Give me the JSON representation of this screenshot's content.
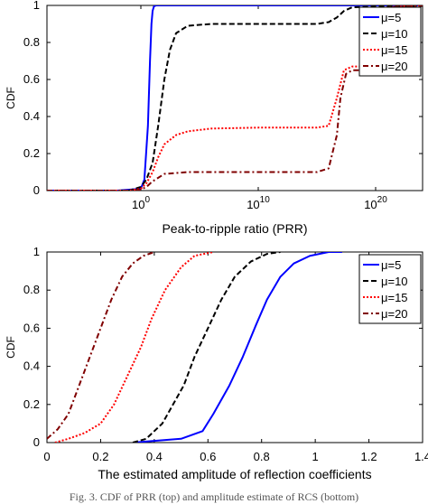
{
  "caption": "Fig. 3.  CDF of PRR (top) and amplitude estimate of RCS (bottom)",
  "chart_data": [
    {
      "type": "line",
      "ylabel": "CDF",
      "xlabel": "Peak-to-ripple ratio (PRR)",
      "xscale": "log",
      "xlim": [
        1e-08,
        1e+24
      ],
      "ylim": [
        0,
        1
      ],
      "xticks": [
        1,
        10000000000.0,
        1e+20
      ],
      "xtick_labels": [
        {
          "base": "10",
          "exp": "0"
        },
        {
          "base": "10",
          "exp": "10"
        },
        {
          "base": "10",
          "exp": "20"
        }
      ],
      "yticks": [
        0,
        0.2,
        0.4,
        0.6,
        0.8,
        1
      ],
      "ytick_labels": [
        "0",
        "0.2",
        "0.4",
        "0.6",
        "0.8",
        "1"
      ],
      "legend_position": "top-right",
      "series": [
        {
          "name": "μ=5",
          "color": "#0000ff",
          "dash": "solid",
          "points": [
            [
              1e-08,
              0
            ],
            [
              0.01,
              0
            ],
            [
              1,
              0.01
            ],
            [
              2,
              0.06
            ],
            [
              4,
              0.35
            ],
            [
              6,
              0.7
            ],
            [
              8,
              0.9
            ],
            [
              10,
              0.97
            ],
            [
              13,
              0.995
            ],
            [
              20,
              1
            ],
            [
              1e+24,
              1
            ]
          ]
        },
        {
          "name": "μ=10",
          "color": "#000000",
          "dash": "dash",
          "points": [
            [
              1e-08,
              0
            ],
            [
              0.1,
              0
            ],
            [
              1,
              0.02
            ],
            [
              3,
              0.06
            ],
            [
              10,
              0.15
            ],
            [
              30,
              0.35
            ],
            [
              100,
              0.6
            ],
            [
              300,
              0.76
            ],
            [
              1000,
              0.85
            ],
            [
              10000.0,
              0.89
            ],
            [
              1000000.0,
              0.9
            ],
            [
              10000000000.0,
              0.9
            ],
            [
              1000000000000000.0,
              0.9
            ],
            [
              1e+16,
              0.91
            ],
            [
              5e+16,
              0.935
            ],
            [
              2e+17,
              0.97
            ],
            [
              1e+18,
              0.99
            ],
            [
              1e+20,
              0.995
            ],
            [
              1e+24,
              0.997
            ]
          ]
        },
        {
          "name": "μ=15",
          "color": "#ff0000",
          "dash": "dot",
          "points": [
            [
              1e-08,
              0
            ],
            [
              0.1,
              0
            ],
            [
              1,
              0.01
            ],
            [
              3,
              0.04
            ],
            [
              10,
              0.1
            ],
            [
              30,
              0.18
            ],
            [
              100,
              0.25
            ],
            [
              1000,
              0.3
            ],
            [
              10000.0,
              0.32
            ],
            [
              1000000.0,
              0.335
            ],
            [
              10000000000.0,
              0.34
            ],
            [
              1000000000000000.0,
              0.34
            ],
            [
              1e+16,
              0.35
            ],
            [
              5e+16,
              0.5
            ],
            [
              2e+17,
              0.65
            ],
            [
              1e+18,
              0.67
            ],
            [
              1e+19,
              0.67
            ],
            [
              2e+19,
              0.75
            ],
            [
              5e+19,
              0.9
            ],
            [
              1e+20,
              0.97
            ],
            [
              1e+21,
              0.99
            ],
            [
              1e+24,
              1
            ]
          ]
        },
        {
          "name": "μ=20",
          "color": "#800000",
          "dash": "dashdot",
          "points": [
            [
              1e-08,
              0
            ],
            [
              0.1,
              0
            ],
            [
              1,
              0.005
            ],
            [
              3,
              0.02
            ],
            [
              10,
              0.05
            ],
            [
              100,
              0.09
            ],
            [
              10000.0,
              0.1
            ],
            [
              10000000000.0,
              0.1
            ],
            [
              1000000000000000.0,
              0.1
            ],
            [
              1e+16,
              0.12
            ],
            [
              5e+16,
              0.3
            ],
            [
              1e+17,
              0.5
            ],
            [
              3e+17,
              0.63
            ],
            [
              1e+18,
              0.65
            ],
            [
              1e+19,
              0.65
            ],
            [
              2e+19,
              0.7
            ],
            [
              5e+19,
              0.82
            ],
            [
              1e+20,
              0.96
            ],
            [
              1e+21,
              0.99
            ],
            [
              1e+24,
              1
            ]
          ]
        }
      ]
    },
    {
      "type": "line",
      "ylabel": "CDF",
      "xlabel": "The estimated amplitude of reflection coefficients",
      "xscale": "linear",
      "xlim": [
        0,
        1.4
      ],
      "ylim": [
        0,
        1
      ],
      "xticks": [
        0,
        0.2,
        0.4,
        0.6,
        0.8,
        1,
        1.2,
        1.4
      ],
      "xtick_labels": [
        "0",
        "0.2",
        "0.4",
        "0.6",
        "0.8",
        "1",
        "1.2",
        "1.4"
      ],
      "yticks": [
        0,
        0.2,
        0.4,
        0.6,
        0.8,
        1
      ],
      "ytick_labels": [
        "0",
        "0.2",
        "0.4",
        "0.6",
        "0.8",
        "1"
      ],
      "legend_position": "top-right",
      "series": [
        {
          "name": "μ=5",
          "color": "#0000ff",
          "dash": "solid",
          "points": [
            [
              0.32,
              0
            ],
            [
              0.5,
              0.02
            ],
            [
              0.58,
              0.06
            ],
            [
              0.62,
              0.15
            ],
            [
              0.68,
              0.3
            ],
            [
              0.73,
              0.45
            ],
            [
              0.78,
              0.62
            ],
            [
              0.82,
              0.75
            ],
            [
              0.87,
              0.87
            ],
            [
              0.92,
              0.94
            ],
            [
              0.98,
              0.98
            ],
            [
              1.05,
              1
            ],
            [
              1.1,
              1
            ]
          ]
        },
        {
          "name": "μ=10",
          "color": "#000000",
          "dash": "dash",
          "points": [
            [
              0.32,
              0
            ],
            [
              0.37,
              0.02
            ],
            [
              0.43,
              0.1
            ],
            [
              0.47,
              0.2
            ],
            [
              0.51,
              0.3
            ],
            [
              0.55,
              0.45
            ],
            [
              0.6,
              0.6
            ],
            [
              0.65,
              0.75
            ],
            [
              0.7,
              0.87
            ],
            [
              0.76,
              0.95
            ],
            [
              0.82,
              0.99
            ],
            [
              0.87,
              1
            ]
          ]
        },
        {
          "name": "μ=15",
          "color": "#ff0000",
          "dash": "dot",
          "points": [
            [
              0.03,
              0
            ],
            [
              0.08,
              0.02
            ],
            [
              0.14,
              0.05
            ],
            [
              0.2,
              0.1
            ],
            [
              0.25,
              0.2
            ],
            [
              0.3,
              0.35
            ],
            [
              0.35,
              0.5
            ],
            [
              0.39,
              0.65
            ],
            [
              0.44,
              0.8
            ],
            [
              0.5,
              0.92
            ],
            [
              0.55,
              0.98
            ],
            [
              0.62,
              1
            ]
          ]
        },
        {
          "name": "μ=20",
          "color": "#800000",
          "dash": "dashdot",
          "points": [
            [
              0,
              0.02
            ],
            [
              0.04,
              0.07
            ],
            [
              0.08,
              0.15
            ],
            [
              0.12,
              0.3
            ],
            [
              0.16,
              0.45
            ],
            [
              0.2,
              0.6
            ],
            [
              0.24,
              0.75
            ],
            [
              0.28,
              0.87
            ],
            [
              0.32,
              0.94
            ],
            [
              0.36,
              0.98
            ],
            [
              0.4,
              1
            ]
          ]
        }
      ]
    }
  ]
}
